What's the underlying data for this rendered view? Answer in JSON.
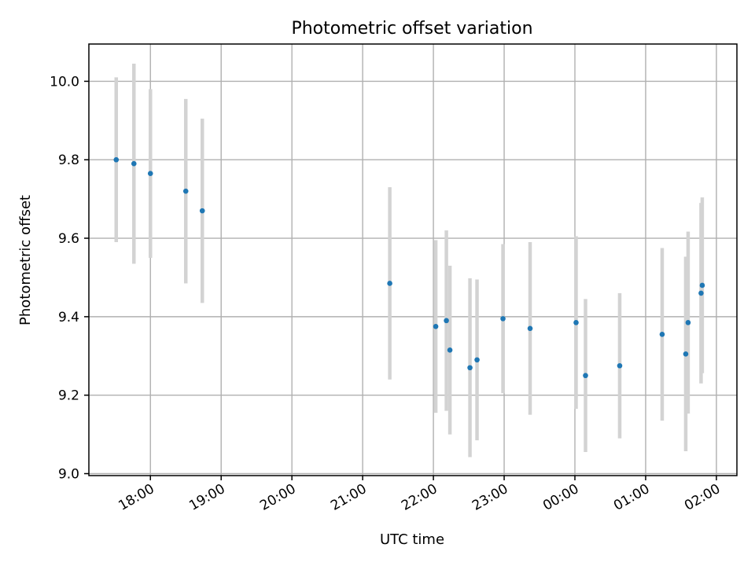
{
  "chart_data": {
    "type": "scatter",
    "title": "Photometric offset variation",
    "xlabel": "UTC time",
    "ylabel": "Photometric offset",
    "x_tick_labels": [
      "18:00",
      "19:00",
      "20:00",
      "21:00",
      "22:00",
      "23:00",
      "00:00",
      "01:00",
      "02:00"
    ],
    "y_tick_labels": [
      "9.0",
      "9.2",
      "9.4",
      "9.6",
      "9.8",
      "10.0"
    ],
    "ylim": [
      8.995,
      10.095
    ],
    "xlim_hours": [
      17.13,
      26.29
    ],
    "grid": true,
    "marker_color": "#1f77b4",
    "errorbar_color": "#d3d3d3",
    "series": [
      {
        "points": [
          {
            "time": "17:31",
            "y": 9.8,
            "err": 0.21
          },
          {
            "time": "17:46",
            "y": 9.79,
            "err": 0.255
          },
          {
            "time": "18:00",
            "y": 9.765,
            "err": 0.215
          },
          {
            "time": "18:30",
            "y": 9.72,
            "err": 0.235
          },
          {
            "time": "18:44",
            "y": 9.67,
            "err": 0.235
          },
          {
            "time": "21:23",
            "y": 9.485,
            "err": 0.245
          },
          {
            "time": "22:02",
            "y": 9.375,
            "err": 0.22
          },
          {
            "time": "22:11",
            "y": 9.39,
            "err": 0.23
          },
          {
            "time": "22:14",
            "y": 9.315,
            "err": 0.215
          },
          {
            "time": "22:31",
            "y": 9.27,
            "err": 0.228
          },
          {
            "time": "22:37",
            "y": 9.29,
            "err": 0.205
          },
          {
            "time": "22:59",
            "y": 9.395,
            "err": 0.19
          },
          {
            "time": "23:22",
            "y": 9.37,
            "err": 0.22
          },
          {
            "time": "00:01",
            "y": 9.385,
            "err": 0.22
          },
          {
            "time": "00:09",
            "y": 9.25,
            "err": 0.195
          },
          {
            "time": "00:38",
            "y": 9.275,
            "err": 0.185
          },
          {
            "time": "01:14",
            "y": 9.355,
            "err": 0.22
          },
          {
            "time": "01:34",
            "y": 9.305,
            "err": 0.248
          },
          {
            "time": "01:36",
            "y": 9.385,
            "err": 0.232
          },
          {
            "time": "01:47",
            "y": 9.46,
            "err": 0.23
          },
          {
            "time": "01:48",
            "y": 9.48,
            "err": 0.224
          }
        ]
      }
    ]
  }
}
